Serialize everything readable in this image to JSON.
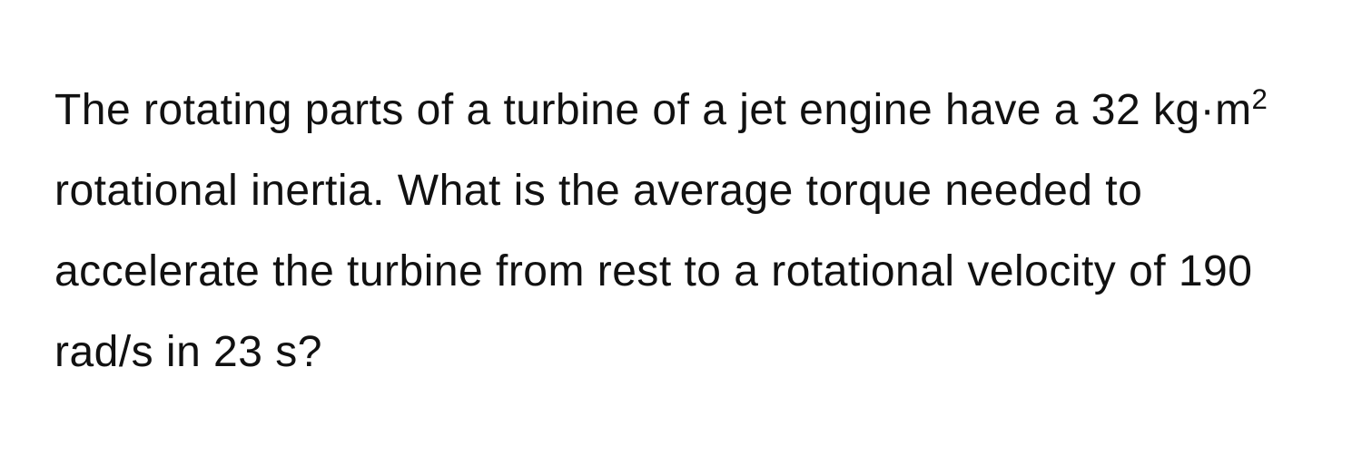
{
  "problem": {
    "text_part1": "The rotating parts of a turbine of a jet engine have a 32 kg·m",
    "superscript": "2",
    "text_part2": " rotational inertia. What is the average torque needed to accelerate the turbine from rest to a rotational velocity of 190 rad/s in 23 s?",
    "font_size": 48,
    "line_height": 1.85,
    "text_color": "#111111",
    "background_color": "#ffffff",
    "values": {
      "rotational_inertia": 32,
      "rotational_inertia_unit": "kg·m²",
      "initial_velocity": 0,
      "final_velocity": 190,
      "velocity_unit": "rad/s",
      "time": 23,
      "time_unit": "s"
    }
  }
}
